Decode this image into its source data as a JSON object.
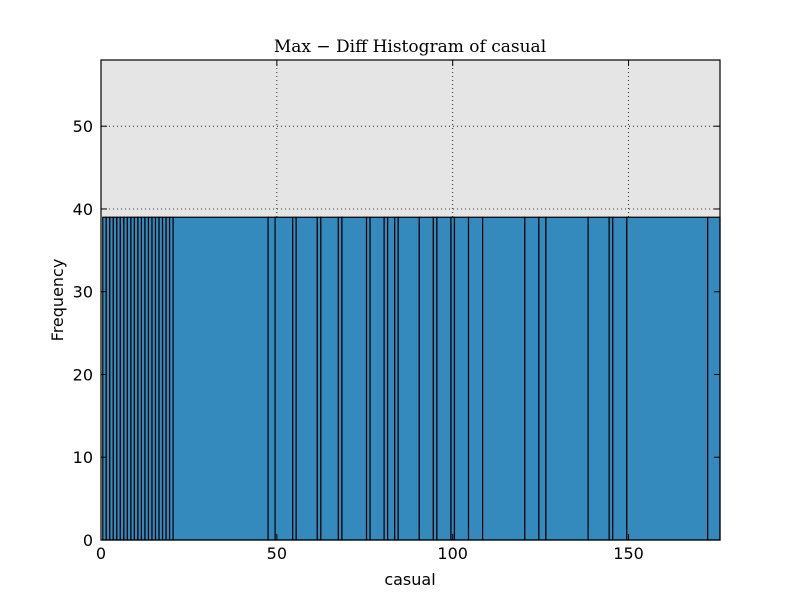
{
  "chart_data": {
    "type": "bar",
    "title": "Max − Diff Histogram of casual",
    "xlabel": "casual",
    "ylabel": "Frequency",
    "xlim": [
      0,
      176
    ],
    "ylim": [
      0,
      58
    ],
    "x_ticks": [
      0,
      50,
      100,
      150
    ],
    "y_ticks": [
      0,
      10,
      20,
      30,
      40,
      50
    ],
    "grid": true,
    "bar_color": "#348abd",
    "plot_background": "#e5e5e5",
    "bin_edges": [
      0.5,
      1.5,
      2.5,
      3.5,
      4.5,
      5.5,
      6.5,
      7.5,
      8.5,
      9.5,
      10.5,
      11.5,
      12.5,
      13.5,
      14.5,
      15.5,
      16.5,
      17.5,
      18.5,
      19.5,
      20.5,
      47.5,
      49.5,
      54.5,
      55.5,
      61.5,
      62.5,
      67.5,
      68.5,
      75.5,
      76.5,
      80.5,
      81.5,
      83.5,
      84.5,
      90.5,
      94.5,
      95.5,
      99.5,
      100.5,
      104.5,
      108.5,
      120.5,
      124.5,
      126.5,
      138.5,
      144.5,
      145.5,
      149.5,
      172.5,
      176
    ],
    "frequency": 39
  }
}
